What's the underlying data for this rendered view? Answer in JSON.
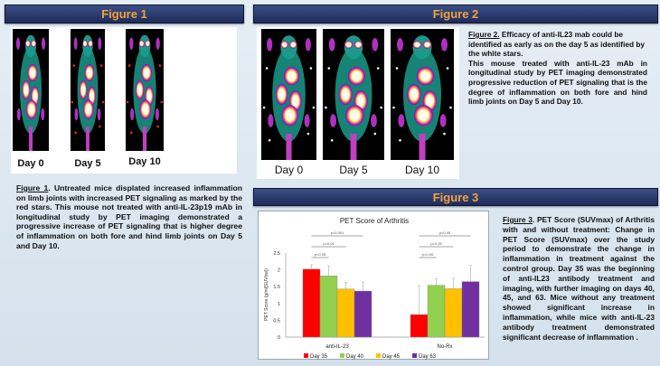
{
  "figure1": {
    "header": "Figure 1",
    "days": [
      "Day 0",
      "Day 5",
      "Day 10"
    ],
    "caption_label": "Figure   1",
    "caption": ". Untreated mice displated increased inflammation on limb joints with increased PET signaling as marked by the red stars. This mouse not treated with anti-IL-23p19 mAb in longitudinal study by PET imaging demonstrated a progressive increase of PET signaling that is higher degree of inflammation on both fore and hind limb joints on Day 5 and Day 10."
  },
  "figure2": {
    "header": "Figure 2",
    "days": [
      "Day 0",
      "Day 5",
      "Day 10"
    ],
    "caption_label": "Figure 2.",
    "caption_line1": " Efficacy of anti-IL23 mab could be identified as early as on the day 5 as identified by the white stars.",
    "caption_line2": "This mouse treated with anti-IL-23 mAb in longitudinal study by PET imaging demonstrated progressive reduction of PET signaling that is the degree of inflammation on both fore and hind limb joints on Day 5 and Day 10."
  },
  "figure3": {
    "header": "Figure 3",
    "caption_label": "Figure 3",
    "caption": ". PET Score (SUVmax) of Arthritis with and without treatment: Change in PET Score (SUVmax) over the study period to demonstrate the change in inflammation in treatment against the control group. Day 35 was the beginning of anti-IL23 antibody treatment and imaging, with further imaging on days 40, 45, and 63. Mice without any treatment showed significant increase in inflammation, while mice with anti-IL-23 antibody treatment demonstrated significant decrease of inflammation ."
  },
  "chart_data": {
    "type": "bar",
    "title": "PET Score of Arthritis",
    "ylabel": "PET Score (g/ml[SUVbw])",
    "xlabel": "",
    "ylim": [
      0,
      2.5
    ],
    "yticks": [
      "0",
      "0.5",
      "1",
      "1.5",
      "2",
      "2.5"
    ],
    "categories": [
      "anti-IL-23",
      "No-Rx"
    ],
    "series": [
      {
        "name": "Day 35",
        "color": "#ff0000",
        "values": [
          2.02,
          0.67
        ],
        "error_top": [
          2.15,
          1.53
        ]
      },
      {
        "name": "Day 40",
        "color": "#92d050",
        "values": [
          1.82,
          1.54
        ],
        "error_top": [
          2.12,
          1.73
        ]
      },
      {
        "name": "Day 45",
        "color": "#ffc000",
        "values": [
          1.43,
          1.44
        ],
        "error_top": [
          1.63,
          1.75
        ]
      },
      {
        "name": "Day 63",
        "color": "#7030a0",
        "values": [
          1.37,
          1.65
        ],
        "error_top": [
          1.64,
          2.13
        ]
      }
    ],
    "annotations": [
      [
        "p<0.05",
        "p<0.01",
        "p<0.001"
      ],
      [
        "p<0.05",
        "p<0.05",
        "p<0.05"
      ]
    ],
    "legend": "bottom",
    "grid": false
  }
}
